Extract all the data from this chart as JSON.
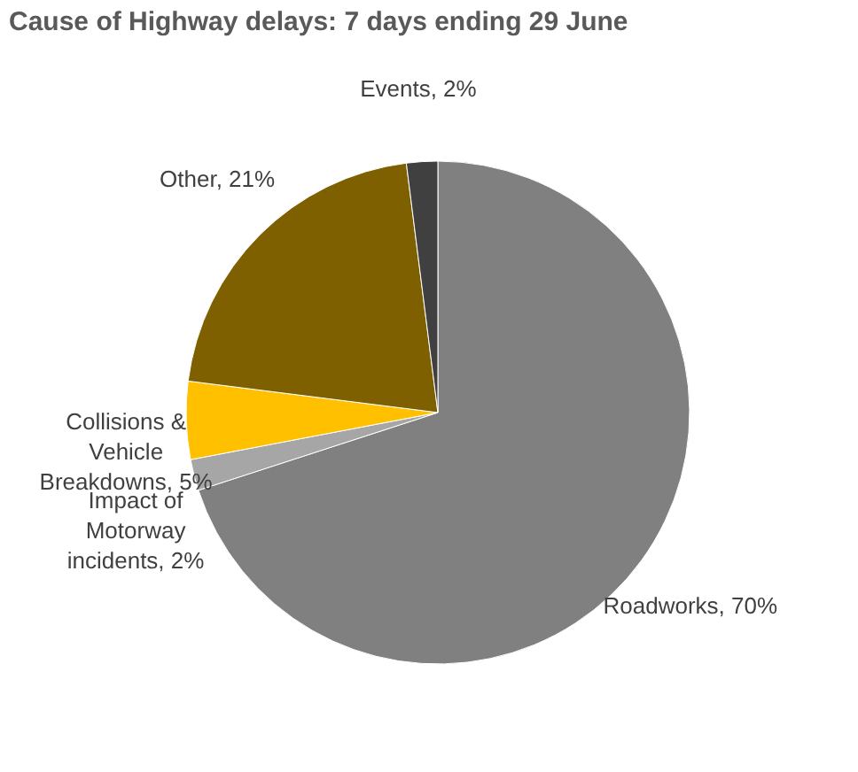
{
  "chart_data": {
    "type": "pie",
    "title": "Cause of Highway delays: 7 days ending 29 June",
    "categories": [
      "Roadworks, 70%",
      "Impact of Motorway incidents, 2%",
      "Collisions & Vehicle Breakdowns, 5%",
      "Other, 21%",
      "Events, 2%"
    ],
    "values": [
      70,
      2,
      5,
      21,
      2
    ],
    "colors": [
      "#808080",
      "#a6a6a6",
      "#ffc000",
      "#7f6000",
      "#404040"
    ],
    "legend": false
  }
}
